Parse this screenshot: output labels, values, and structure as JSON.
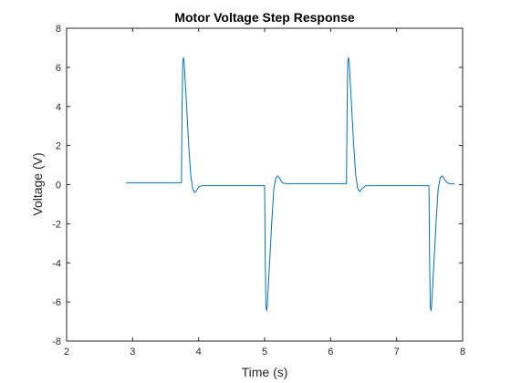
{
  "chart_data": {
    "type": "line",
    "title": "Motor Voltage Step Response",
    "xlabel": "Time (s)",
    "ylabel": "Voltage (V)",
    "xlim": [
      2,
      8
    ],
    "ylim": [
      -8,
      8
    ],
    "xticks": [
      2,
      3,
      4,
      5,
      6,
      7,
      8
    ],
    "yticks": [
      -8,
      -6,
      -4,
      -2,
      0,
      2,
      4,
      6,
      8
    ],
    "grid": false,
    "series": [
      {
        "color": "#0072bd",
        "points": [
          [
            2.9,
            0.1
          ],
          [
            3.74,
            0.1
          ],
          [
            3.75,
            4.0
          ],
          [
            3.76,
            6.3
          ],
          [
            3.77,
            6.5
          ],
          [
            3.78,
            6.3
          ],
          [
            3.81,
            4.5
          ],
          [
            3.85,
            2.0
          ],
          [
            3.88,
            0.5
          ],
          [
            3.91,
            -0.2
          ],
          [
            3.94,
            -0.4
          ],
          [
            3.97,
            -0.3
          ],
          [
            4.0,
            -0.12
          ],
          [
            4.05,
            -0.05
          ],
          [
            4.2,
            -0.05
          ],
          [
            5.0,
            -0.05
          ],
          [
            5.01,
            -4.0
          ],
          [
            5.02,
            -6.2
          ],
          [
            5.03,
            -6.45
          ],
          [
            5.04,
            -6.2
          ],
          [
            5.07,
            -4.3
          ],
          [
            5.11,
            -1.8
          ],
          [
            5.14,
            -0.2
          ],
          [
            5.17,
            0.35
          ],
          [
            5.2,
            0.45
          ],
          [
            5.23,
            0.3
          ],
          [
            5.27,
            0.1
          ],
          [
            5.33,
            0.05
          ],
          [
            5.5,
            0.05
          ],
          [
            6.24,
            0.05
          ],
          [
            6.25,
            4.0
          ],
          [
            6.26,
            6.3
          ],
          [
            6.27,
            6.5
          ],
          [
            6.28,
            6.3
          ],
          [
            6.31,
            4.5
          ],
          [
            6.35,
            2.0
          ],
          [
            6.38,
            0.5
          ],
          [
            6.41,
            -0.2
          ],
          [
            6.44,
            -0.35
          ],
          [
            6.48,
            -0.2
          ],
          [
            6.53,
            -0.05
          ],
          [
            6.7,
            -0.05
          ],
          [
            7.49,
            -0.05
          ],
          [
            7.5,
            -4.0
          ],
          [
            7.51,
            -6.2
          ],
          [
            7.52,
            -6.45
          ],
          [
            7.53,
            -6.2
          ],
          [
            7.56,
            -4.3
          ],
          [
            7.6,
            -1.8
          ],
          [
            7.63,
            -0.2
          ],
          [
            7.66,
            0.35
          ],
          [
            7.69,
            0.45
          ],
          [
            7.72,
            0.3
          ],
          [
            7.76,
            0.12
          ],
          [
            7.8,
            0.05
          ],
          [
            7.88,
            0.05
          ]
        ]
      }
    ]
  }
}
